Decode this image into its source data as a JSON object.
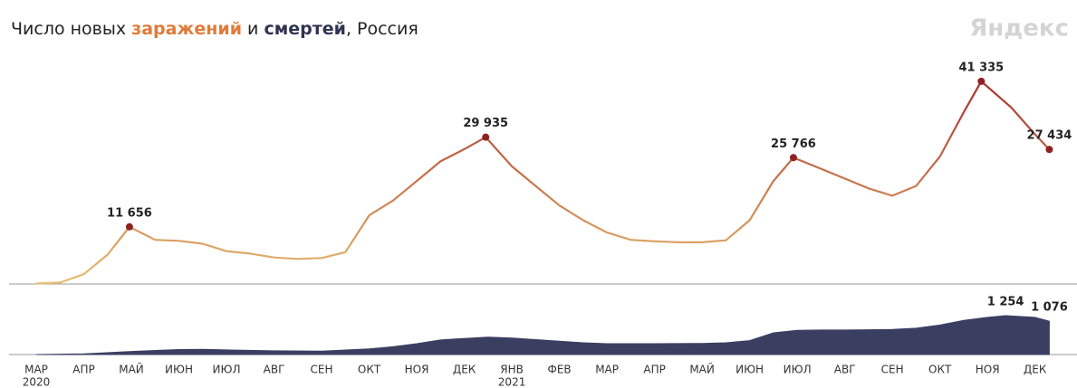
{
  "brand": "Яндекс",
  "chart_data": [
    {
      "type": "line",
      "title_parts": [
        {
          "text": "Число новых "
        },
        {
          "text": "заражений",
          "bold": true,
          "color": "#e07b39"
        },
        {
          "text": " и "
        },
        {
          "text": "смертей",
          "bold": true,
          "color": "#2f3350"
        },
        {
          "text": ", Россия"
        }
      ],
      "x": [
        0,
        0.5,
        1,
        1.5,
        1.96,
        2.5,
        3,
        3.5,
        4,
        4.5,
        5,
        5.5,
        6,
        6.5,
        7,
        7.5,
        8,
        8.5,
        9,
        9.45,
        10,
        10.5,
        11,
        11.5,
        12,
        12.5,
        13,
        13.5,
        14,
        14.5,
        15,
        15.5,
        15.92,
        16.5,
        17,
        17.5,
        18,
        18.5,
        19,
        19.5,
        19.87,
        20.5,
        21,
        21.3
      ],
      "series": [
        {
          "colors": [
            "#e8bf72",
            "#a8302c"
          ],
          "marker_color": "#8e2222",
          "values": [
            100,
            300,
            2000,
            6000,
            11656,
            9000,
            8800,
            8200,
            6700,
            6200,
            5400,
            5100,
            5300,
            6500,
            14000,
            17000,
            21000,
            25000,
            27500,
            29935,
            24000,
            20000,
            16000,
            13000,
            10500,
            9000,
            8700,
            8500,
            8500,
            8900,
            13000,
            21000,
            25766,
            23500,
            21500,
            19500,
            18000,
            20000,
            26000,
            35000,
            41335,
            36000,
            30500,
            27434
          ],
          "value_labels": [
            null,
            null,
            null,
            null,
            "11 656",
            null,
            null,
            null,
            null,
            null,
            null,
            null,
            null,
            null,
            null,
            null,
            null,
            null,
            null,
            "29 935",
            null,
            null,
            null,
            null,
            null,
            null,
            null,
            null,
            null,
            null,
            null,
            null,
            "25 766",
            null,
            null,
            null,
            null,
            null,
            null,
            null,
            "41 335",
            null,
            null,
            "27 434"
          ]
        }
      ],
      "xlim": [
        0,
        21.33
      ],
      "ylim": [
        0,
        45000
      ]
    },
    {
      "type": "area",
      "x": [
        0,
        1,
        2,
        2.5,
        3,
        3.5,
        4,
        5,
        6,
        7,
        7.5,
        8,
        8.5,
        9,
        9.5,
        10,
        10.5,
        11,
        11.5,
        12,
        13,
        14,
        14.5,
        15,
        15.5,
        16,
        16.5,
        17,
        17.5,
        18,
        18.5,
        19,
        19.5,
        20,
        20.38,
        21,
        21.3
      ],
      "series": [
        {
          "color": "#3a3f62",
          "values": [
            0,
            20,
            100,
            130,
            160,
            170,
            150,
            120,
            110,
            180,
            250,
            350,
            470,
            520,
            560,
            530,
            480,
            430,
            380,
            350,
            350,
            360,
            380,
            450,
            700,
            780,
            790,
            790,
            800,
            810,
            850,
            950,
            1100,
            1200,
            1254,
            1200,
            1076
          ],
          "value_labels": [
            null,
            null,
            null,
            null,
            null,
            null,
            null,
            null,
            null,
            null,
            null,
            null,
            null,
            null,
            null,
            null,
            null,
            null,
            null,
            null,
            null,
            null,
            null,
            null,
            null,
            null,
            null,
            null,
            null,
            null,
            null,
            null,
            null,
            null,
            "1 254",
            null,
            "1 076"
          ]
        }
      ],
      "xlim": [
        0,
        21.33
      ],
      "ylim": [
        0,
        1400
      ],
      "xticks": [
        {
          "value": 0,
          "label": "МАР"
        },
        {
          "value": 1,
          "label": "АПР"
        },
        {
          "value": 2,
          "label": "МАЙ"
        },
        {
          "value": 3,
          "label": "ИЮН"
        },
        {
          "value": 4,
          "label": "ИЮЛ"
        },
        {
          "value": 5,
          "label": "АВГ"
        },
        {
          "value": 6,
          "label": "СЕН"
        },
        {
          "value": 7,
          "label": "ОКТ"
        },
        {
          "value": 8,
          "label": "НОЯ"
        },
        {
          "value": 9,
          "label": "ДЕК"
        },
        {
          "value": 10,
          "label": "ЯНВ"
        },
        {
          "value": 11,
          "label": "ФЕВ"
        },
        {
          "value": 12,
          "label": "МАР"
        },
        {
          "value": 13,
          "label": "АПР"
        },
        {
          "value": 14,
          "label": "МАЙ"
        },
        {
          "value": 15,
          "label": "ИЮН"
        },
        {
          "value": 16,
          "label": "ИЮЛ"
        },
        {
          "value": 17,
          "label": "АВГ"
        },
        {
          "value": 18,
          "label": "СЕН"
        },
        {
          "value": 19,
          "label": "ОКТ"
        },
        {
          "value": 20,
          "label": "НОЯ"
        },
        {
          "value": 21,
          "label": "ДЕК"
        }
      ],
      "year_labels": [
        {
          "value": 0,
          "label": "2020"
        },
        {
          "value": 10,
          "label": "2021"
        }
      ]
    }
  ]
}
